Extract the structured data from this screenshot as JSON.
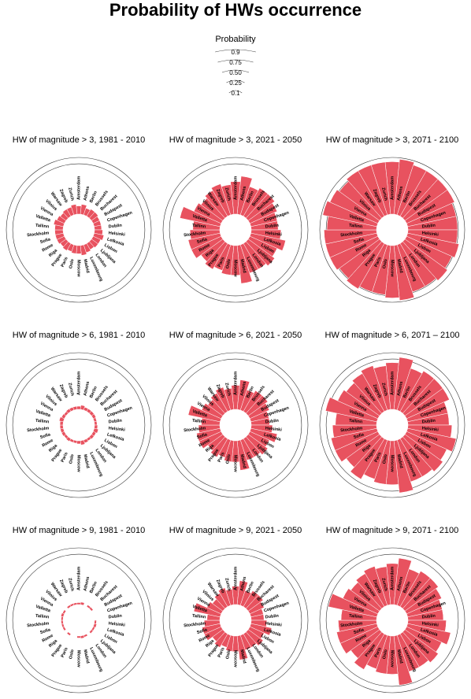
{
  "title": "Probability of HWs occurrence",
  "legend": {
    "title": "Probability",
    "levels": [
      "0.9",
      "0.75",
      "0.50",
      "0.25",
      "0.1"
    ],
    "values": [
      0.9,
      0.75,
      0.5,
      0.25,
      0.1
    ]
  },
  "colors": {
    "bar": "#e8525f",
    "bar_stroke": "#ffffff",
    "ring": "#333333"
  },
  "chart_data": [
    {
      "type": "bar",
      "subtype": "circular-bar",
      "title": "HW of magnitude > 3, 1981 - 2010",
      "categories": [
        "Amsterdam",
        "Athens",
        "Berlin",
        "Brussels",
        "Bucharest",
        "Budapest",
        "Copenhagen",
        "Dublin",
        "Helsinki",
        "Lefkosia",
        "Lisbon",
        "Ljubljana",
        "London",
        "Luxembourg",
        "Madrid",
        "Moscow",
        "Oslo",
        "Paris",
        "Prague",
        "Riga",
        "Rome",
        "Sofia",
        "Stockholm",
        "Tallinn",
        "Valletta",
        "Vienna",
        "Vilnius",
        "Warsaw",
        "Zagreb",
        "Zurich"
      ],
      "values": [
        0.12,
        0.15,
        0.1,
        0.12,
        0.12,
        0.1,
        0.1,
        0.1,
        0.12,
        0.15,
        0.12,
        0.12,
        0.1,
        0.12,
        0.15,
        0.12,
        0.12,
        0.1,
        0.12,
        0.1,
        0.12,
        0.12,
        0.12,
        0.12,
        0.15,
        0.12,
        0.1,
        0.12,
        0.12,
        0.15
      ]
    },
    {
      "type": "bar",
      "subtype": "circular-bar",
      "title": "HW of magnitude > 3, 2021 - 2050",
      "categories": [
        "Amsterdam",
        "Athens",
        "Berlin",
        "Brussels",
        "Bucharest",
        "Budapest",
        "Copenhagen",
        "Dublin",
        "Helsinki",
        "Lefkosia",
        "Lisbon",
        "Ljubljana",
        "London",
        "Luxembourg",
        "Madrid",
        "Moscow",
        "Oslo",
        "Paris",
        "Prague",
        "Riga",
        "Rome",
        "Sofia",
        "Stockholm",
        "Tallinn",
        "Valletta",
        "Vienna",
        "Vilnius",
        "Warsaw",
        "Zagreb",
        "Zurich"
      ],
      "values": [
        0.55,
        0.65,
        0.5,
        0.55,
        0.55,
        0.5,
        0.45,
        0.45,
        0.5,
        0.6,
        0.5,
        0.55,
        0.5,
        0.5,
        0.65,
        0.5,
        0.5,
        0.45,
        0.5,
        0.45,
        0.55,
        0.55,
        0.5,
        0.45,
        0.7,
        0.5,
        0.45,
        0.5,
        0.55,
        0.5
      ]
    },
    {
      "type": "bar",
      "subtype": "circular-bar",
      "title": "HW of magnitude > 3, 2071 - 2100",
      "categories": [
        "Amsterdam",
        "Athens",
        "Berlin",
        "Brussels",
        "Bucharest",
        "Budapest",
        "Copenhagen",
        "Dublin",
        "Helsinki",
        "Lefkosia",
        "Lisbon",
        "Ljubljana",
        "London",
        "Luxembourg",
        "Madrid",
        "Moscow",
        "Oslo",
        "Paris",
        "Prague",
        "Riga",
        "Rome",
        "Sofia",
        "Stockholm",
        "Tallinn",
        "Valletta",
        "Vienna",
        "Vilnius",
        "Warsaw",
        "Zagreb",
        "Zurich"
      ],
      "values": [
        0.9,
        0.95,
        0.9,
        0.9,
        0.9,
        0.9,
        0.85,
        0.85,
        0.85,
        0.9,
        0.85,
        0.9,
        0.85,
        0.85,
        0.95,
        0.9,
        0.85,
        0.85,
        0.9,
        0.85,
        0.9,
        0.9,
        0.9,
        0.85,
        0.95,
        0.9,
        0.85,
        0.9,
        0.9,
        0.9
      ]
    },
    {
      "type": "bar",
      "subtype": "circular-bar",
      "title": "HW of magnitude > 6, 1981 - 2010",
      "categories": [
        "Amsterdam",
        "Athens",
        "Berlin",
        "Brussels",
        "Bucharest",
        "Budapest",
        "Copenhagen",
        "Dublin",
        "Helsinki",
        "Lefkosia",
        "Lisbon",
        "Ljubljana",
        "London",
        "Luxembourg",
        "Madrid",
        "Moscow",
        "Oslo",
        "Paris",
        "Prague",
        "Riga",
        "Rome",
        "Sofia",
        "Stockholm",
        "Tallinn",
        "Valletta",
        "Vienna",
        "Vilnius",
        "Warsaw",
        "Zagreb",
        "Zurich"
      ],
      "values": [
        0.03,
        0.05,
        0.03,
        0.03,
        0.03,
        0.03,
        0.02,
        0.02,
        0.03,
        0.05,
        0.03,
        0.03,
        0.02,
        0.03,
        0.05,
        0.03,
        0.02,
        0.02,
        0.03,
        0.02,
        0.03,
        0.03,
        0.03,
        0.03,
        0.05,
        0.03,
        0.02,
        0.03,
        0.03,
        0.03
      ]
    },
    {
      "type": "bar",
      "subtype": "circular-bar",
      "title": "HW of magnitude > 6, 2021 - 2050",
      "categories": [
        "Amsterdam",
        "Athens",
        "Berlin",
        "Brussels",
        "Bucharest",
        "Budapest",
        "Copenhagen",
        "Dublin",
        "Helsinki",
        "Lefkosia",
        "Lisbon",
        "Ljubljana",
        "London",
        "Luxembourg",
        "Madrid",
        "Moscow",
        "Oslo",
        "Paris",
        "Prague",
        "Riga",
        "Rome",
        "Sofia",
        "Stockholm",
        "Tallinn",
        "Valletta",
        "Vienna",
        "Vilnius",
        "Warsaw",
        "Zagreb",
        "Zurich"
      ],
      "values": [
        0.4,
        0.5,
        0.35,
        0.4,
        0.4,
        0.35,
        0.3,
        0.3,
        0.35,
        0.45,
        0.35,
        0.4,
        0.35,
        0.35,
        0.5,
        0.35,
        0.35,
        0.3,
        0.35,
        0.3,
        0.4,
        0.4,
        0.35,
        0.3,
        0.55,
        0.35,
        0.3,
        0.35,
        0.4,
        0.35
      ]
    },
    {
      "type": "bar",
      "subtype": "circular-bar",
      "title": "HW of magnitude > 6, 2071 – 2100",
      "categories": [
        "Amsterdam",
        "Athens",
        "Berlin",
        "Brussels",
        "Bucharest",
        "Budapest",
        "Copenhagen",
        "Dublin",
        "Helsinki",
        "Lefkosia",
        "Lisbon",
        "Ljubljana",
        "London",
        "Luxembourg",
        "Madrid",
        "Moscow",
        "Oslo",
        "Paris",
        "Prague",
        "Riga",
        "Rome",
        "Sofia",
        "Stockholm",
        "Tallinn",
        "Valletta",
        "Vienna",
        "Vilnius",
        "Warsaw",
        "Zagreb",
        "Zurich"
      ],
      "values": [
        0.8,
        0.9,
        0.75,
        0.8,
        0.8,
        0.8,
        0.7,
        0.7,
        0.75,
        0.85,
        0.75,
        0.8,
        0.75,
        0.75,
        0.9,
        0.75,
        0.75,
        0.7,
        0.8,
        0.7,
        0.8,
        0.8,
        0.75,
        0.7,
        0.9,
        0.75,
        0.7,
        0.75,
        0.8,
        0.75
      ]
    },
    {
      "type": "bar",
      "subtype": "circular-bar",
      "title": "HW of magnitude > 9, 1981 - 2010",
      "categories": [
        "Amsterdam",
        "Athens",
        "Berlin",
        "Brussels",
        "Bucharest",
        "Budapest",
        "Copenhagen",
        "Dublin",
        "Helsinki",
        "Lefkosia",
        "Lisbon",
        "Ljubljana",
        "London",
        "Luxembourg",
        "Madrid",
        "Moscow",
        "Oslo",
        "Paris",
        "Prague",
        "Riga",
        "Rome",
        "Sofia",
        "Stockholm",
        "Tallinn",
        "Valletta",
        "Vienna",
        "Vilnius",
        "Warsaw",
        "Zagreb",
        "Zurich"
      ],
      "values": [
        0.01,
        0.02,
        0.0,
        0.01,
        0.01,
        0.0,
        0.0,
        0.0,
        0.01,
        0.02,
        0.01,
        0.01,
        0.0,
        0.01,
        0.02,
        0.01,
        0.0,
        0.0,
        0.01,
        0.0,
        0.01,
        0.01,
        0.01,
        0.01,
        0.02,
        0.01,
        0.0,
        0.01,
        0.01,
        0.01
      ]
    },
    {
      "type": "bar",
      "subtype": "circular-bar",
      "title": "HW of magnitude > 9, 2021 - 2050",
      "categories": [
        "Amsterdam",
        "Athens",
        "Berlin",
        "Brussels",
        "Bucharest",
        "Budapest",
        "Copenhagen",
        "Dublin",
        "Helsinki",
        "Lefkosia",
        "Lisbon",
        "Ljubljana",
        "London",
        "Luxembourg",
        "Madrid",
        "Moscow",
        "Oslo",
        "Paris",
        "Prague",
        "Riga",
        "Rome",
        "Sofia",
        "Stockholm",
        "Tallinn",
        "Valletta",
        "Vienna",
        "Vilnius",
        "Warsaw",
        "Zagreb",
        "Zurich"
      ],
      "values": [
        0.3,
        0.4,
        0.25,
        0.3,
        0.3,
        0.25,
        0.2,
        0.2,
        0.25,
        0.35,
        0.25,
        0.3,
        0.25,
        0.25,
        0.4,
        0.25,
        0.25,
        0.2,
        0.25,
        0.2,
        0.3,
        0.3,
        0.25,
        0.2,
        0.45,
        0.25,
        0.2,
        0.25,
        0.3,
        0.25
      ]
    },
    {
      "type": "bar",
      "subtype": "circular-bar",
      "title": "HW of magnitude > 9, 2071 - 2100",
      "categories": [
        "Amsterdam",
        "Athens",
        "Berlin",
        "Brussels",
        "Bucharest",
        "Budapest",
        "Copenhagen",
        "Dublin",
        "Helsinki",
        "Lefkosia",
        "Lisbon",
        "Ljubljana",
        "London",
        "Luxembourg",
        "Madrid",
        "Moscow",
        "Oslo",
        "Paris",
        "Prague",
        "Riga",
        "Rome",
        "Sofia",
        "Stockholm",
        "Tallinn",
        "Valletta",
        "Vienna",
        "Vilnius",
        "Warsaw",
        "Zagreb",
        "Zurich"
      ],
      "values": [
        0.7,
        0.8,
        0.65,
        0.7,
        0.7,
        0.65,
        0.6,
        0.6,
        0.65,
        0.75,
        0.65,
        0.7,
        0.65,
        0.65,
        0.85,
        0.65,
        0.65,
        0.6,
        0.7,
        0.6,
        0.7,
        0.7,
        0.65,
        0.6,
        0.85,
        0.65,
        0.6,
        0.65,
        0.7,
        0.65
      ]
    }
  ]
}
